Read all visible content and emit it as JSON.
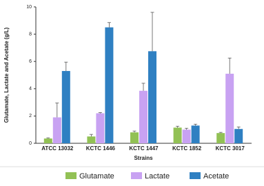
{
  "chart_data": {
    "type": "bar",
    "x_label": "Strains",
    "y_label": "Glutamate, Lactate and Acetate  (g/L)",
    "categories": [
      "ATCC 13032",
      "KCTC 1446",
      "KCTC 1447",
      "KCTC 1852",
      "KCTC 3017"
    ],
    "series": [
      {
        "name": "Glutamate",
        "color": "#92c155",
        "values": [
          0.35,
          0.5,
          0.8,
          1.15,
          0.75
        ],
        "errors": [
          0.05,
          0.15,
          0.1,
          0.1,
          0.05
        ]
      },
      {
        "name": "Lactate",
        "color": "#c8a2f2",
        "values": [
          1.9,
          2.2,
          3.85,
          1.0,
          5.1
        ],
        "errors": [
          1.05,
          0.05,
          0.55,
          0.1,
          1.15
        ]
      },
      {
        "name": "Acetate",
        "color": "#2f80c2",
        "values": [
          5.3,
          8.5,
          6.75,
          1.3,
          1.05
        ],
        "errors": [
          0.65,
          0.35,
          2.85,
          0.1,
          0.15
        ]
      }
    ],
    "ylim": [
      0,
      10
    ],
    "yticks": [
      0,
      2,
      4,
      6,
      8,
      10
    ],
    "legend": "bottom"
  }
}
